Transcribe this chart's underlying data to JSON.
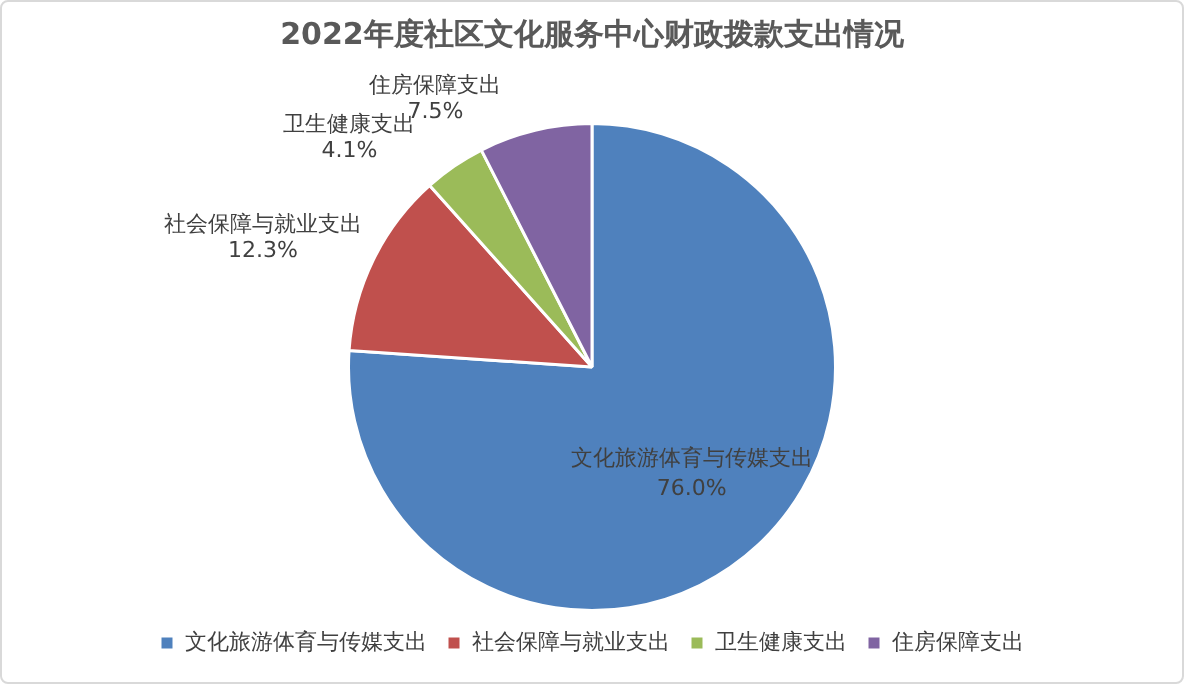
{
  "chart_data": {
    "type": "pie",
    "title": "2022年度社区文化服务中心财政拨款支出情况",
    "categories": [
      "文化旅游体育与传媒支出",
      "社会保障与就业支出",
      "卫生健康支出",
      "住房保障支出"
    ],
    "values": [
      76.0,
      12.3,
      4.1,
      7.5
    ],
    "colors": [
      "#4f81bd",
      "#c0504d",
      "#9bbb59",
      "#8064a2"
    ],
    "value_labels": [
      "76.0%",
      "12.3%",
      "4.1%",
      "7.5%"
    ],
    "legend": "bottom"
  }
}
